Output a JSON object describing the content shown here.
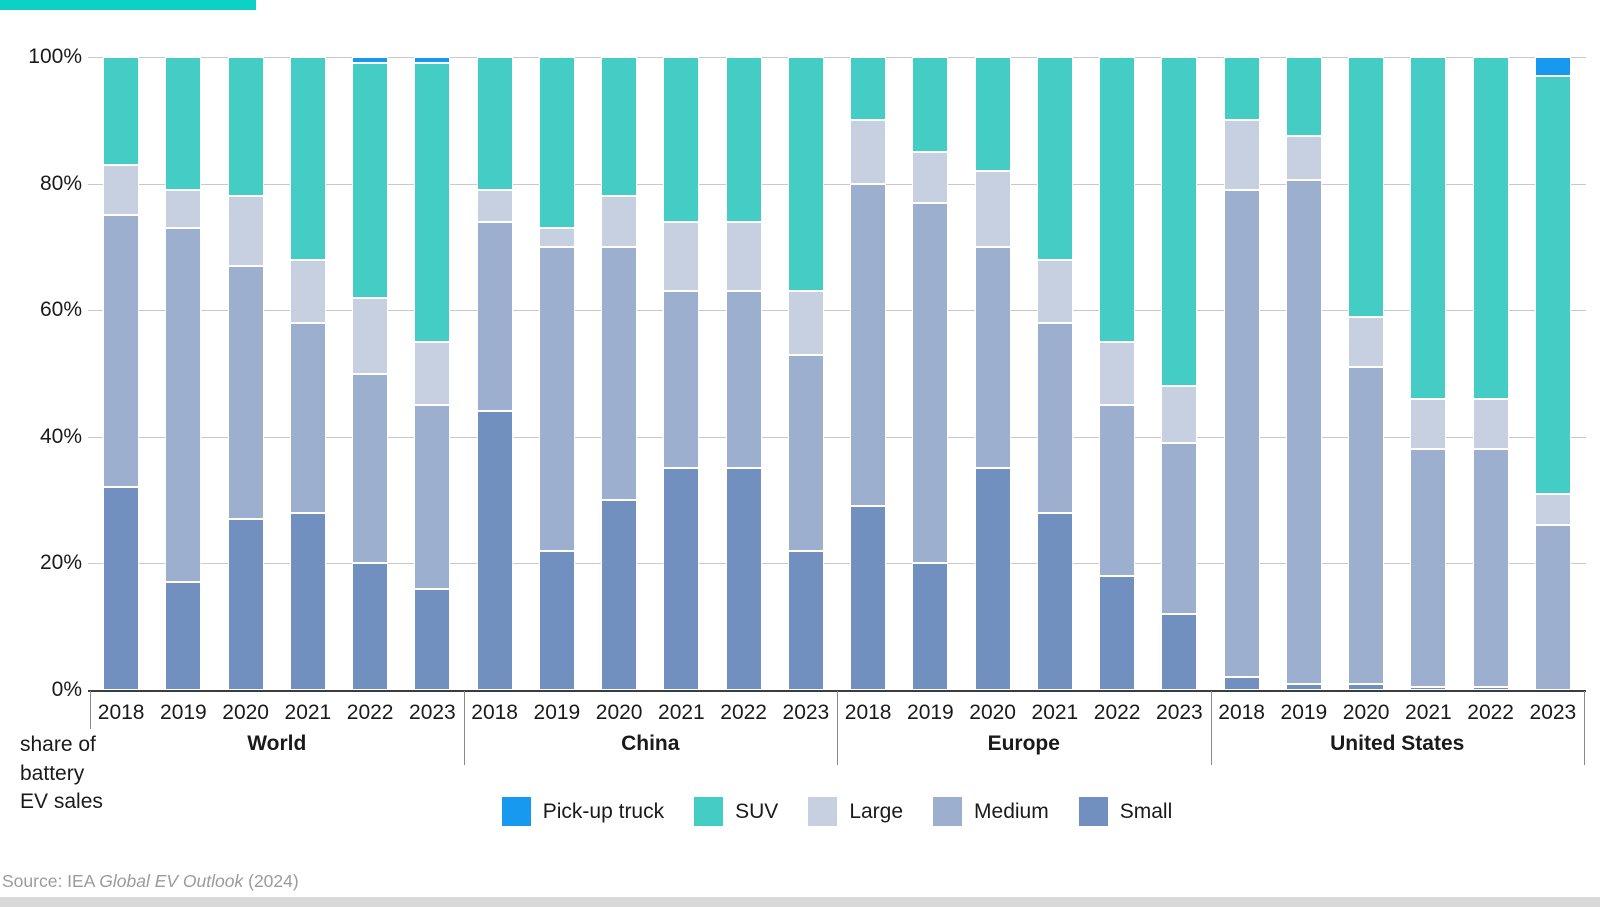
{
  "accent_bar_color": "#0CD2C6",
  "y_axis": {
    "tick_suffix": "%",
    "caption_lines": [
      "share of",
      "battery",
      "EV sales"
    ]
  },
  "legend": [
    {
      "label": "Pick-up truck",
      "color": "#1899F0"
    },
    {
      "label": "SUV",
      "color": "#44CDC5"
    },
    {
      "label": "Large",
      "color": "#C7D0E1"
    },
    {
      "label": "Medium",
      "color": "#9CAFCE"
    },
    {
      "label": "Small",
      "color": "#7190C0"
    }
  ],
  "source": {
    "prefix": "Source: IEA ",
    "italic": "Global EV Outlook",
    "suffix": " (2024)"
  },
  "chart_data": {
    "type": "bar",
    "stacked": true,
    "unit": "%",
    "ylim": [
      0,
      100
    ],
    "y_ticks": [
      0,
      20,
      40,
      60,
      80,
      100
    ],
    "grid": true,
    "years": [
      "2018",
      "2019",
      "2020",
      "2021",
      "2022",
      "2023"
    ],
    "stack_order": [
      "Small",
      "Medium",
      "Large",
      "SUV",
      "Pick-up truck"
    ],
    "colors": {
      "Small": "#7190C0",
      "Medium": "#9CAFCE",
      "Large": "#C7D0E1",
      "SUV": "#44CDC5",
      "Pick-up truck": "#1899F0"
    },
    "groups": [
      {
        "label": "World",
        "series": [
          {
            "name": "Small",
            "values": [
              32,
              17,
              27,
              28,
              20,
              16
            ]
          },
          {
            "name": "Medium",
            "values": [
              43,
              56,
              40,
              30,
              30,
              29
            ]
          },
          {
            "name": "Large",
            "values": [
              8,
              6,
              11,
              10,
              12,
              10
            ]
          },
          {
            "name": "SUV",
            "values": [
              17,
              21,
              22,
              32,
              37,
              44
            ]
          },
          {
            "name": "Pick-up truck",
            "values": [
              0,
              0,
              0,
              0,
              1,
              1
            ]
          }
        ]
      },
      {
        "label": "China",
        "series": [
          {
            "name": "Small",
            "values": [
              44,
              22,
              30,
              35,
              35,
              22
            ]
          },
          {
            "name": "Medium",
            "values": [
              30,
              48,
              40,
              28,
              28,
              31
            ]
          },
          {
            "name": "Large",
            "values": [
              5,
              3,
              8,
              11,
              11,
              10
            ]
          },
          {
            "name": "SUV",
            "values": [
              21,
              27,
              22,
              26,
              26,
              37
            ]
          },
          {
            "name": "Pick-up truck",
            "values": [
              0,
              0,
              0,
              0,
              0,
              0
            ]
          }
        ]
      },
      {
        "label": "Europe",
        "series": [
          {
            "name": "Small",
            "values": [
              29,
              20,
              35,
              28,
              18,
              12
            ]
          },
          {
            "name": "Medium",
            "values": [
              51,
              57,
              35,
              30,
              27,
              27
            ]
          },
          {
            "name": "Large",
            "values": [
              10,
              8,
              12,
              10,
              10,
              9
            ]
          },
          {
            "name": "SUV",
            "values": [
              10,
              15,
              18,
              32,
              45,
              52
            ]
          },
          {
            "name": "Pick-up truck",
            "values": [
              0,
              0,
              0,
              0,
              0,
              0
            ]
          }
        ]
      },
      {
        "label": "United States",
        "series": [
          {
            "name": "Small",
            "values": [
              2,
              1,
              1,
              0.5,
              0.5,
              0
            ]
          },
          {
            "name": "Medium",
            "values": [
              77,
              79.5,
              50,
              37.5,
              37.5,
              26
            ]
          },
          {
            "name": "Large",
            "values": [
              11,
              7,
              8,
              8,
              8,
              5
            ]
          },
          {
            "name": "SUV",
            "values": [
              10,
              12.5,
              41,
              54,
              54,
              66
            ]
          },
          {
            "name": "Pick-up truck",
            "values": [
              0,
              0,
              0,
              0,
              0,
              3
            ]
          }
        ]
      }
    ]
  }
}
